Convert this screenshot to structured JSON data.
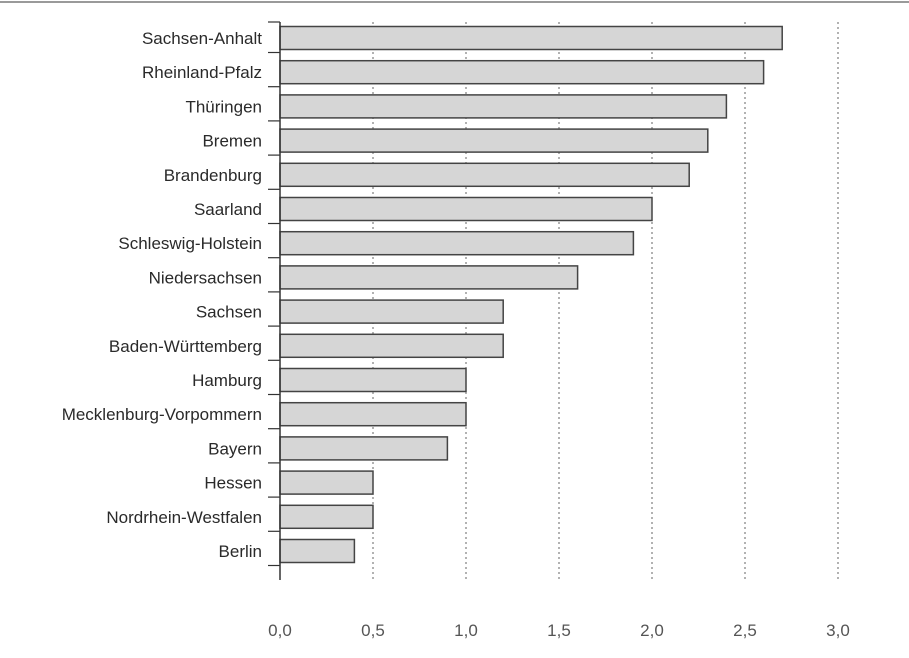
{
  "chart_data": {
    "type": "bar",
    "orientation": "horizontal",
    "categories": [
      "Sachsen-Anhalt",
      "Rheinland-Pfalz",
      "Thüringen",
      "Bremen",
      "Brandenburg",
      "Saarland",
      "Schleswig-Holstein",
      "Niedersachsen",
      "Sachsen",
      "Baden-Württemberg",
      "Hamburg",
      "Mecklenburg-Vorpommern",
      "Bayern",
      "Hessen",
      "Nordrhein-Westfalen",
      "Berlin"
    ],
    "values": [
      2.7,
      2.6,
      2.4,
      2.3,
      2.2,
      2.0,
      1.9,
      1.6,
      1.2,
      1.2,
      1.0,
      1.0,
      0.9,
      0.5,
      0.5,
      0.4
    ],
    "title": "",
    "xlabel": "",
    "ylabel": "",
    "xlim": [
      0,
      3.0
    ],
    "x_ticks": [
      0,
      0.5,
      1.0,
      1.5,
      2.0,
      2.5,
      3.0
    ],
    "x_tick_labels": [
      "0,0",
      "0,5",
      "1,0",
      "1,5",
      "2,0",
      "2,5",
      "3,0"
    ],
    "grid": "vertical dotted",
    "legend": "none",
    "bar_color": "#d6d6d6",
    "bar_edge_color": "#444444"
  }
}
